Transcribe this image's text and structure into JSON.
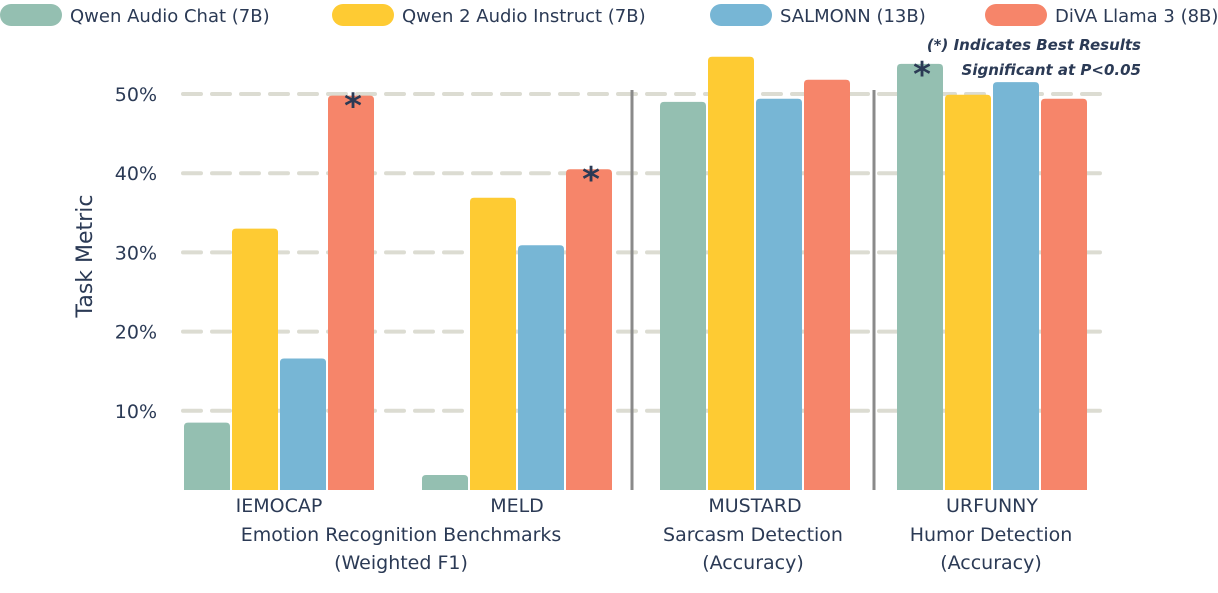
{
  "chart_data": {
    "type": "bar",
    "ylabel": "Task Metric",
    "ylim": [
      0,
      56
    ],
    "yticks": [
      10,
      20,
      30,
      40,
      50
    ],
    "ytick_labels": [
      "10%",
      "20%",
      "30%",
      "40%",
      "50%"
    ],
    "grid": true,
    "legend_position": "top",
    "categories": [
      "IEMOCAP",
      "MELD",
      "MUSTARD",
      "URFUNNY"
    ],
    "category_groups": [
      {
        "label": "Emotion Recognition Benchmarks",
        "metric": "(Weighted F1)",
        "categories": [
          "IEMOCAP",
          "MELD"
        ]
      },
      {
        "label": "Sarcasm Detection",
        "metric": "(Accuracy)",
        "categories": [
          "MUSTARD"
        ]
      },
      {
        "label": "Humor Detection",
        "metric": "(Accuracy)",
        "categories": [
          "URFUNNY"
        ]
      }
    ],
    "series": [
      {
        "name": "Qwen Audio Chat (7B)",
        "color": "#94bfb1",
        "values": [
          8.5,
          1.9,
          49.0,
          53.8
        ]
      },
      {
        "name": "Qwen 2 Audio Instruct (7B)",
        "color": "#fecb33",
        "values": [
          33.0,
          36.9,
          54.7,
          49.9
        ]
      },
      {
        "name": "SALMONN (13B)",
        "color": "#77b6d5",
        "values": [
          16.6,
          30.9,
          49.4,
          51.5
        ]
      },
      {
        "name": "DiVA Llama 3 (8B)",
        "color": "#f6856a",
        "values": [
          49.8,
          40.5,
          51.8,
          49.4
        ]
      }
    ],
    "significance_markers": [
      {
        "category": "IEMOCAP",
        "series": "DiVA Llama 3 (8B)",
        "symbol": "*"
      },
      {
        "category": "MELD",
        "series": "DiVA Llama 3 (8B)",
        "symbol": "*"
      },
      {
        "category": "URFUNNY",
        "series": "Qwen Audio Chat (7B)",
        "symbol": "*"
      }
    ],
    "annotation": [
      "(*) Indicates Best Results",
      "Significant at P<0.05"
    ]
  }
}
